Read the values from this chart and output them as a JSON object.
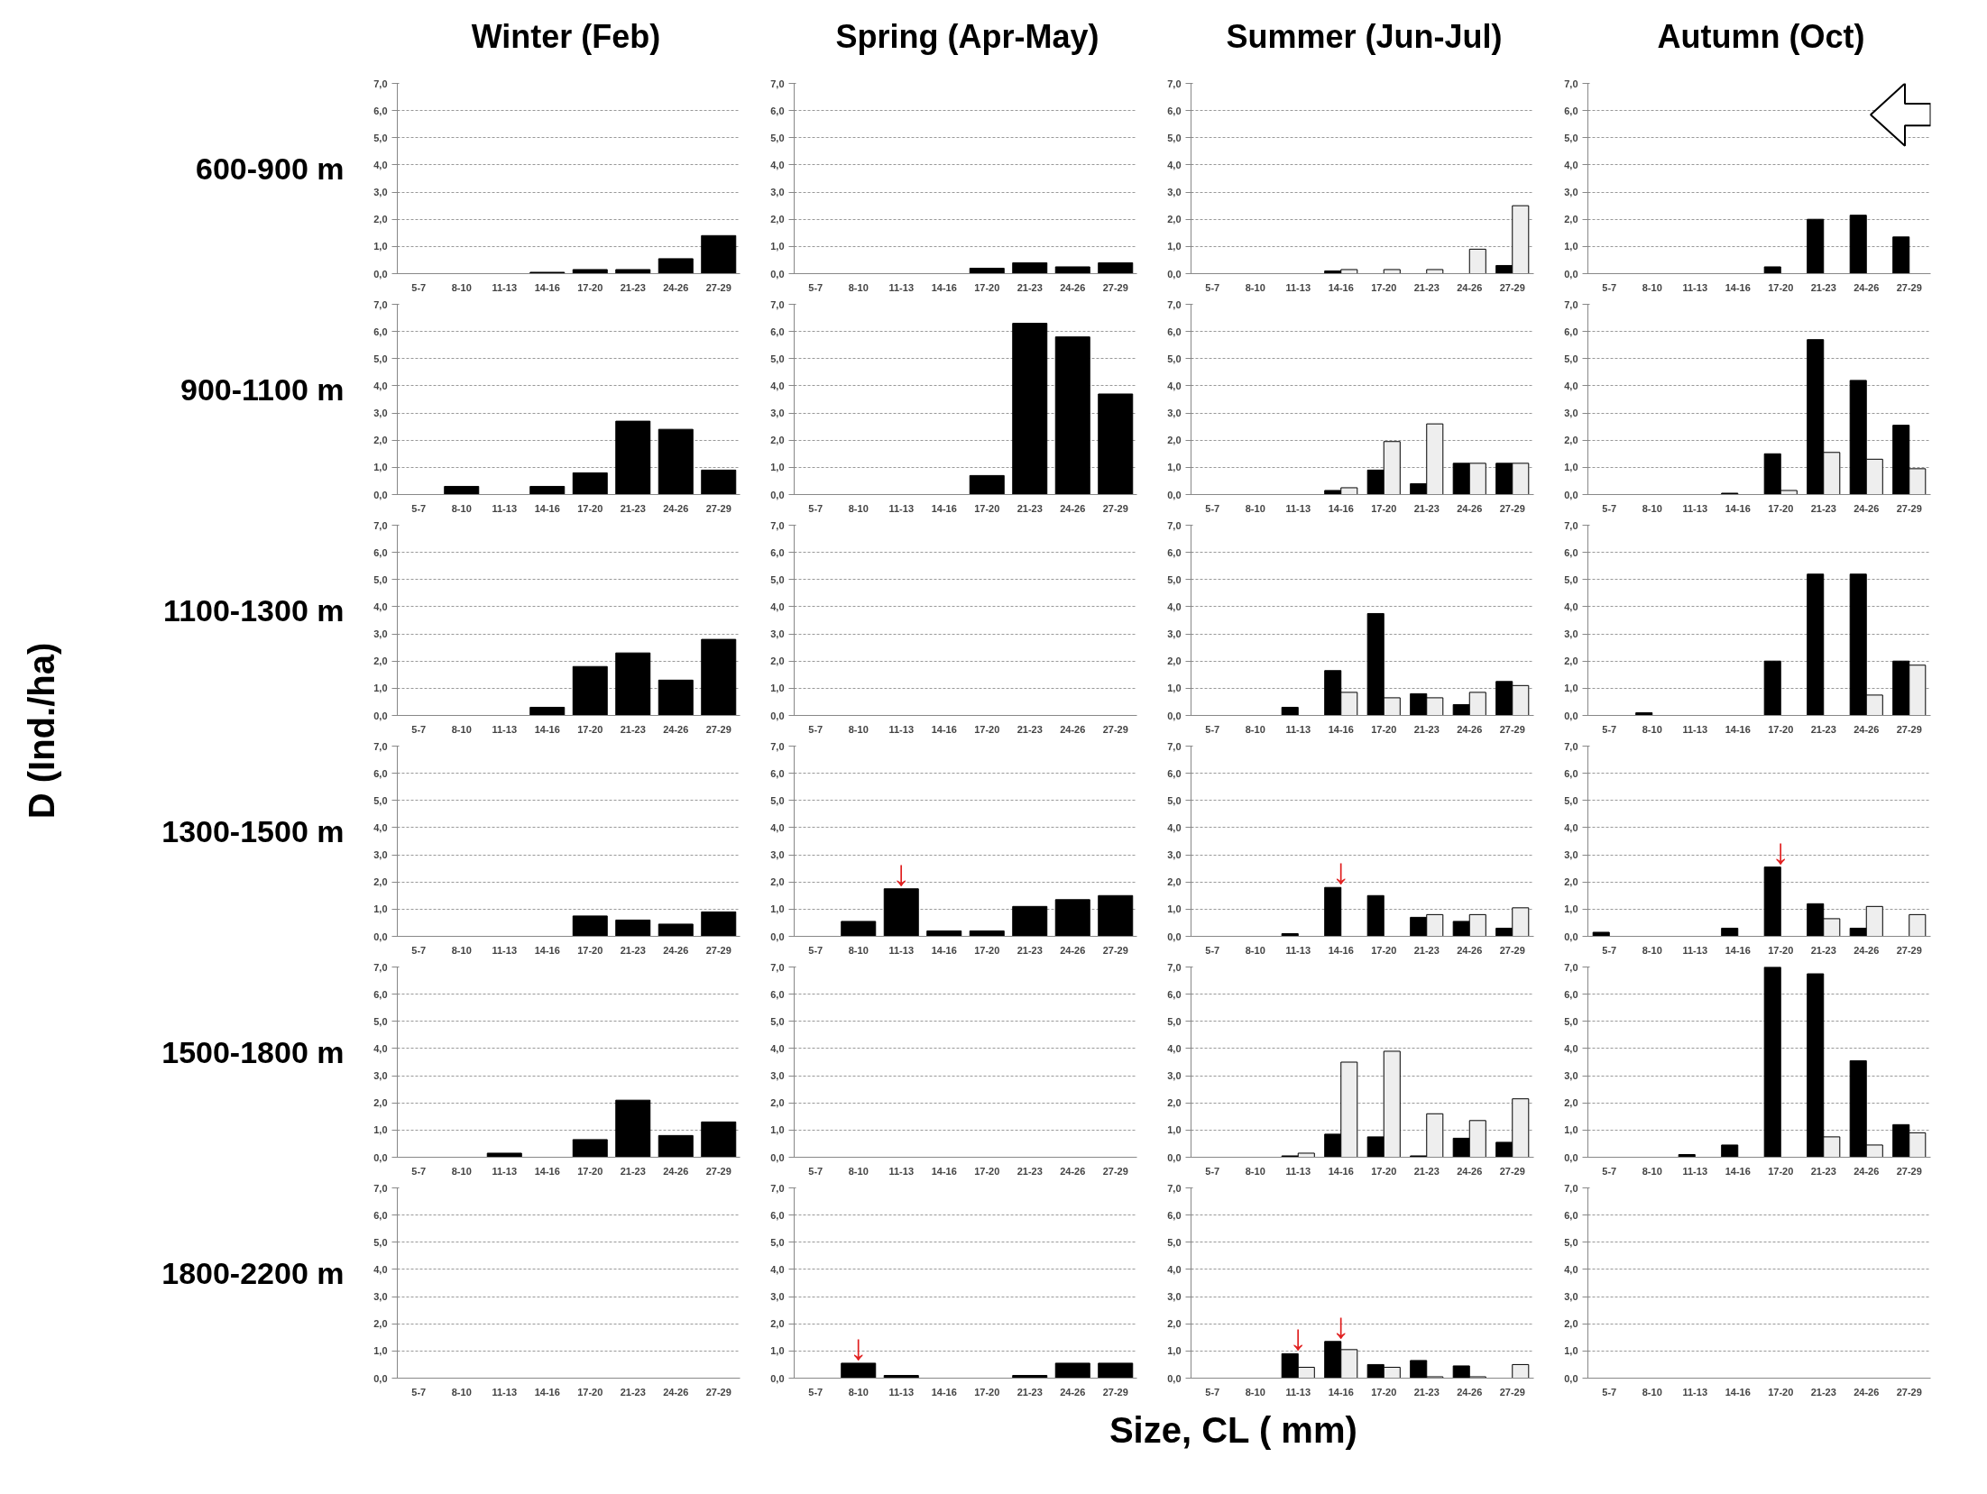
{
  "chart_data": [
    {
      "type": "bar",
      "title": "Winter  (Feb)",
      "ylabel": "600-900 m",
      "annotations": [
        "D (Ind./ha)",
        "Size, CL ( mm)"
      ],
      "categories": [
        "5-7",
        "8-10",
        "11-13",
        "14-16",
        "17-20",
        "21-23",
        "24-26",
        "27-29"
      ],
      "series": [
        {
          "color": "#000000",
          "values": [
            0,
            0,
            0,
            0.05,
            0.15,
            0.15,
            0.55,
            1.4
          ]
        }
      ],
      "ylim": [
        0,
        7
      ],
      "yticks": [
        {
          "value": 0,
          "label": "0,0"
        },
        {
          "value": 1,
          "label": "1,0"
        },
        {
          "value": 2,
          "label": "2,0"
        },
        {
          "value": 3,
          "label": "3,0"
        },
        {
          "value": 4,
          "label": "4,0"
        },
        {
          "value": 5,
          "label": "5,0"
        },
        {
          "value": 6,
          "label": "6,0"
        },
        {
          "value": 7,
          "label": "7,0"
        }
      ],
      "grid": "y"
    },
    {
      "type": "bar",
      "title": "Spring (Apr-May)",
      "categories": [
        "5-7",
        "8-10",
        "11-13",
        "14-16",
        "17-20",
        "21-23",
        "24-26",
        "27-29"
      ],
      "series": [
        {
          "color": "#000000",
          "values": [
            0,
            0,
            0,
            0,
            0.2,
            0.4,
            0.25,
            0.4
          ]
        }
      ],
      "ylim": [
        0,
        7
      ],
      "yticks": [
        {
          "value": 0,
          "label": "0,0"
        },
        {
          "value": 1,
          "label": "1,0"
        },
        {
          "value": 2,
          "label": "2,0"
        },
        {
          "value": 3,
          "label": "3,0"
        },
        {
          "value": 4,
          "label": "4,0"
        },
        {
          "value": 5,
          "label": "5,0"
        },
        {
          "value": 6,
          "label": "6,0"
        },
        {
          "value": 7,
          "label": "7,0"
        }
      ],
      "grid": "y"
    },
    {
      "type": "bar",
      "title": "Summer (Jun-Jul)",
      "categories": [
        "5-7",
        "8-10",
        "11-13",
        "14-16",
        "17-20",
        "21-23",
        "24-26",
        "27-29"
      ],
      "series": [
        {
          "color": "#000000",
          "values": [
            0,
            0,
            0,
            0.1,
            0,
            0,
            0,
            0.3
          ]
        },
        {
          "color": "#eeeeee",
          "values": [
            0,
            0,
            0,
            0.15,
            0.15,
            0.15,
            0.9,
            2.5
          ]
        }
      ],
      "ylim": [
        0,
        7
      ],
      "yticks": [
        {
          "value": 0,
          "label": "0,0"
        },
        {
          "value": 1,
          "label": "1,0"
        },
        {
          "value": 2,
          "label": "2,0"
        },
        {
          "value": 3,
          "label": "3,0"
        },
        {
          "value": 4,
          "label": "4,0"
        },
        {
          "value": 5,
          "label": "5,0"
        },
        {
          "value": 6,
          "label": "6,0"
        },
        {
          "value": 7,
          "label": "7,0"
        }
      ],
      "grid": "y"
    },
    {
      "type": "bar",
      "title": "Autumn (Oct)",
      "categories": [
        "5-7",
        "8-10",
        "11-13",
        "14-16",
        "17-20",
        "21-23",
        "24-26",
        "27-29"
      ],
      "series": [
        {
          "color": "#000000",
          "values": [
            0,
            0,
            0,
            0,
            0.25,
            2.0,
            2.15,
            1.35
          ]
        },
        {
          "color": "#eeeeee",
          "values": [
            0,
            0,
            0,
            0,
            0,
            0,
            0,
            0
          ]
        }
      ],
      "ylim": [
        0,
        7
      ],
      "yticks": [
        {
          "value": 0,
          "label": "0,0"
        },
        {
          "value": 1,
          "label": "1,0"
        },
        {
          "value": 2,
          "label": "2,0"
        },
        {
          "value": 3,
          "label": "3,0"
        },
        {
          "value": 4,
          "label": "4,0"
        },
        {
          "value": 5,
          "label": "5,0"
        },
        {
          "value": 6,
          "label": "6,0"
        },
        {
          "value": 7,
          "label": "7,0"
        }
      ],
      "grid": "y"
    },
    {
      "type": "bar",
      "ylabel": "900-1100 m",
      "categories": [
        "5-7",
        "8-10",
        "11-13",
        "14-16",
        "17-20",
        "21-23",
        "24-26",
        "27-29"
      ],
      "series": [
        {
          "color": "#000000",
          "values": [
            0,
            0.3,
            0,
            0.3,
            0.8,
            2.7,
            2.4,
            0.9
          ]
        }
      ],
      "ylim": [
        0,
        7
      ],
      "yticks": [
        {
          "value": 0,
          "label": "0,0"
        },
        {
          "value": 1,
          "label": "1,0"
        },
        {
          "value": 2,
          "label": "2,0"
        },
        {
          "value": 3,
          "label": "3,0"
        },
        {
          "value": 4,
          "label": "4,0"
        },
        {
          "value": 5,
          "label": "5,0"
        },
        {
          "value": 6,
          "label": "6,0"
        },
        {
          "value": 7,
          "label": "7,0"
        }
      ],
      "grid": "y"
    },
    {
      "type": "bar",
      "categories": [
        "5-7",
        "8-10",
        "11-13",
        "14-16",
        "17-20",
        "21-23",
        "24-26",
        "27-29"
      ],
      "series": [
        {
          "color": "#000000",
          "values": [
            0,
            0,
            0,
            0,
            0.7,
            6.3,
            5.8,
            3.7
          ]
        }
      ],
      "ylim": [
        0,
        7
      ],
      "yticks": [
        {
          "value": 0,
          "label": "0,0"
        },
        {
          "value": 1,
          "label": "1,0"
        },
        {
          "value": 2,
          "label": "2,0"
        },
        {
          "value": 3,
          "label": "3,0"
        },
        {
          "value": 4,
          "label": "4,0"
        },
        {
          "value": 5,
          "label": "5,0"
        },
        {
          "value": 6,
          "label": "6,0"
        },
        {
          "value": 7,
          "label": "7,0"
        }
      ],
      "grid": "y"
    },
    {
      "type": "bar",
      "categories": [
        "5-7",
        "8-10",
        "11-13",
        "14-16",
        "17-20",
        "21-23",
        "24-26",
        "27-29"
      ],
      "series": [
        {
          "color": "#000000",
          "values": [
            0,
            0,
            0,
            0.15,
            0.9,
            0.4,
            1.15,
            1.15
          ]
        },
        {
          "color": "#eeeeee",
          "values": [
            0,
            0,
            0,
            0.25,
            1.95,
            2.6,
            1.15,
            1.15
          ]
        }
      ],
      "ylim": [
        0,
        7
      ],
      "yticks": [
        {
          "value": 0,
          "label": "0,0"
        },
        {
          "value": 1,
          "label": "1,0"
        },
        {
          "value": 2,
          "label": "2,0"
        },
        {
          "value": 3,
          "label": "3,0"
        },
        {
          "value": 4,
          "label": "4,0"
        },
        {
          "value": 5,
          "label": "5,0"
        },
        {
          "value": 6,
          "label": "6,0"
        },
        {
          "value": 7,
          "label": "7,0"
        }
      ],
      "grid": "y"
    },
    {
      "type": "bar",
      "categories": [
        "5-7",
        "8-10",
        "11-13",
        "14-16",
        "17-20",
        "21-23",
        "24-26",
        "27-29"
      ],
      "series": [
        {
          "color": "#000000",
          "values": [
            0,
            0,
            0,
            0.05,
            1.5,
            5.7,
            4.2,
            2.55
          ]
        },
        {
          "color": "#eeeeee",
          "values": [
            0,
            0,
            0,
            0,
            0.15,
            1.55,
            1.3,
            0.95
          ]
        }
      ],
      "ylim": [
        0,
        7
      ],
      "yticks": [
        {
          "value": 0,
          "label": "0,0"
        },
        {
          "value": 1,
          "label": "1,0"
        },
        {
          "value": 2,
          "label": "2,0"
        },
        {
          "value": 3,
          "label": "3,0"
        },
        {
          "value": 4,
          "label": "4,0"
        },
        {
          "value": 5,
          "label": "5,0"
        },
        {
          "value": 6,
          "label": "6,0"
        },
        {
          "value": 7,
          "label": "7,0"
        }
      ],
      "grid": "y"
    },
    {
      "type": "bar",
      "ylabel": "1100-1300 m",
      "categories": [
        "5-7",
        "8-10",
        "11-13",
        "14-16",
        "17-20",
        "21-23",
        "24-26",
        "27-29"
      ],
      "series": [
        {
          "color": "#000000",
          "values": [
            0,
            0,
            0,
            0.3,
            1.8,
            2.3,
            1.3,
            2.8
          ]
        }
      ],
      "ylim": [
        0,
        7
      ],
      "yticks": [
        {
          "value": 0,
          "label": "0,0"
        },
        {
          "value": 1,
          "label": "1,0"
        },
        {
          "value": 2,
          "label": "2,0"
        },
        {
          "value": 3,
          "label": "3,0"
        },
        {
          "value": 4,
          "label": "4,0"
        },
        {
          "value": 5,
          "label": "5,0"
        },
        {
          "value": 6,
          "label": "6,0"
        },
        {
          "value": 7,
          "label": "7,0"
        }
      ],
      "grid": "y"
    },
    {
      "type": "bar",
      "categories": [
        "5-7",
        "8-10",
        "11-13",
        "14-16",
        "17-20",
        "21-23",
        "24-26",
        "27-29"
      ],
      "series": [
        {
          "color": "#000000",
          "values": [
            0,
            0,
            0,
            0,
            0,
            0,
            0,
            0
          ]
        }
      ],
      "ylim": [
        0,
        7
      ],
      "yticks": [
        {
          "value": 0,
          "label": "0,0"
        },
        {
          "value": 1,
          "label": "1,0"
        },
        {
          "value": 2,
          "label": "2,0"
        },
        {
          "value": 3,
          "label": "3,0"
        },
        {
          "value": 4,
          "label": "4,0"
        },
        {
          "value": 5,
          "label": "5,0"
        },
        {
          "value": 6,
          "label": "6,0"
        },
        {
          "value": 7,
          "label": "7,0"
        }
      ],
      "grid": "y"
    },
    {
      "type": "bar",
      "categories": [
        "5-7",
        "8-10",
        "11-13",
        "14-16",
        "17-20",
        "21-23",
        "24-26",
        "27-29"
      ],
      "series": [
        {
          "color": "#000000",
          "values": [
            0,
            0,
            0.3,
            1.65,
            3.75,
            0.8,
            0.4,
            1.25
          ]
        },
        {
          "color": "#eeeeee",
          "values": [
            0,
            0,
            0,
            0.85,
            0.65,
            0.65,
            0.85,
            1.1
          ]
        }
      ],
      "ylim": [
        0,
        7
      ],
      "yticks": [
        {
          "value": 0,
          "label": "0,0"
        },
        {
          "value": 1,
          "label": "1,0"
        },
        {
          "value": 2,
          "label": "2,0"
        },
        {
          "value": 3,
          "label": "3,0"
        },
        {
          "value": 4,
          "label": "4,0"
        },
        {
          "value": 5,
          "label": "5,0"
        },
        {
          "value": 6,
          "label": "6,0"
        },
        {
          "value": 7,
          "label": "7,0"
        }
      ],
      "grid": "y"
    },
    {
      "type": "bar",
      "categories": [
        "5-7",
        "8-10",
        "11-13",
        "14-16",
        "17-20",
        "21-23",
        "24-26",
        "27-29"
      ],
      "series": [
        {
          "color": "#000000",
          "values": [
            0,
            0.1,
            0,
            0,
            2.0,
            5.2,
            5.2,
            2.0
          ]
        },
        {
          "color": "#eeeeee",
          "values": [
            0,
            0,
            0,
            0,
            0,
            0,
            0.75,
            1.85
          ]
        }
      ],
      "ylim": [
        0,
        7
      ],
      "yticks": [
        {
          "value": 0,
          "label": "0,0"
        },
        {
          "value": 1,
          "label": "1,0"
        },
        {
          "value": 2,
          "label": "2,0"
        },
        {
          "value": 3,
          "label": "3,0"
        },
        {
          "value": 4,
          "label": "4,0"
        },
        {
          "value": 5,
          "label": "5,0"
        },
        {
          "value": 6,
          "label": "6,0"
        },
        {
          "value": 7,
          "label": "7,0"
        }
      ],
      "grid": "y"
    },
    {
      "type": "bar",
      "ylabel": "1300-1500 m",
      "categories": [
        "5-7",
        "8-10",
        "11-13",
        "14-16",
        "17-20",
        "21-23",
        "24-26",
        "27-29"
      ],
      "series": [
        {
          "color": "#000000",
          "values": [
            0,
            0,
            0,
            0,
            0.75,
            0.6,
            0.45,
            0.9
          ]
        }
      ],
      "ylim": [
        0,
        7
      ],
      "yticks": [
        {
          "value": 0,
          "label": "0,0"
        },
        {
          "value": 1,
          "label": "1,0"
        },
        {
          "value": 2,
          "label": "2,0"
        },
        {
          "value": 3,
          "label": "3,0"
        },
        {
          "value": 4,
          "label": "4,0"
        },
        {
          "value": 5,
          "label": "5,0"
        },
        {
          "value": 6,
          "label": "6,0"
        },
        {
          "value": 7,
          "label": "7,0"
        }
      ],
      "grid": "y"
    },
    {
      "type": "bar",
      "annotations": [
        {
          "text": "↓",
          "x": "11-13",
          "y": 1.75
        }
      ],
      "categories": [
        "5-7",
        "8-10",
        "11-13",
        "14-16",
        "17-20",
        "21-23",
        "24-26",
        "27-29"
      ],
      "series": [
        {
          "color": "#000000",
          "values": [
            0,
            0.55,
            1.75,
            0.2,
            0.2,
            1.1,
            1.35,
            1.5
          ]
        }
      ],
      "ylim": [
        0,
        7
      ],
      "yticks": [
        {
          "value": 0,
          "label": "0,0"
        },
        {
          "value": 1,
          "label": "1,0"
        },
        {
          "value": 2,
          "label": "2,0"
        },
        {
          "value": 3,
          "label": "3,0"
        },
        {
          "value": 4,
          "label": "4,0"
        },
        {
          "value": 5,
          "label": "5,0"
        },
        {
          "value": 6,
          "label": "6,0"
        },
        {
          "value": 7,
          "label": "7,0"
        }
      ],
      "grid": "y"
    },
    {
      "type": "bar",
      "annotations": [
        {
          "text": "↓",
          "x": "14-16",
          "y": 1.8
        }
      ],
      "categories": [
        "5-7",
        "8-10",
        "11-13",
        "14-16",
        "17-20",
        "21-23",
        "24-26",
        "27-29"
      ],
      "series": [
        {
          "color": "#000000",
          "values": [
            0,
            0,
            0.1,
            1.8,
            1.5,
            0.7,
            0.55,
            0.3
          ]
        },
        {
          "color": "#eeeeee",
          "values": [
            0,
            0,
            0,
            0,
            0,
            0.8,
            0.8,
            1.05
          ]
        }
      ],
      "ylim": [
        0,
        7
      ],
      "yticks": [
        {
          "value": 0,
          "label": "0,0"
        },
        {
          "value": 1,
          "label": "1,0"
        },
        {
          "value": 2,
          "label": "2,0"
        },
        {
          "value": 3,
          "label": "3,0"
        },
        {
          "value": 4,
          "label": "4,0"
        },
        {
          "value": 5,
          "label": "5,0"
        },
        {
          "value": 6,
          "label": "6,0"
        },
        {
          "value": 7,
          "label": "7,0"
        }
      ],
      "grid": "y"
    },
    {
      "type": "bar",
      "annotations": [
        {
          "text": "↓",
          "x": "17-20",
          "y": 2.55
        }
      ],
      "categories": [
        "5-7",
        "8-10",
        "11-13",
        "14-16",
        "17-20",
        "21-23",
        "24-26",
        "27-29"
      ],
      "series": [
        {
          "color": "#000000",
          "values": [
            0.15,
            0,
            0,
            0.3,
            2.55,
            1.2,
            0.3,
            0
          ]
        },
        {
          "color": "#eeeeee",
          "values": [
            0,
            0,
            0,
            0,
            0,
            0.65,
            1.1,
            0.8
          ]
        }
      ],
      "ylim": [
        0,
        7
      ],
      "yticks": [
        {
          "value": 0,
          "label": "0,0"
        },
        {
          "value": 1,
          "label": "1,0"
        },
        {
          "value": 2,
          "label": "2,0"
        },
        {
          "value": 3,
          "label": "3,0"
        },
        {
          "value": 4,
          "label": "4,0"
        },
        {
          "value": 5,
          "label": "5,0"
        },
        {
          "value": 6,
          "label": "6,0"
        },
        {
          "value": 7,
          "label": "7,0"
        }
      ],
      "grid": "y"
    },
    {
      "type": "bar",
      "ylabel": "1500-1800 m",
      "categories": [
        "5-7",
        "8-10",
        "11-13",
        "14-16",
        "17-20",
        "21-23",
        "24-26",
        "27-29"
      ],
      "series": [
        {
          "color": "#000000",
          "values": [
            0,
            0,
            0.15,
            0,
            0.65,
            2.1,
            0.8,
            1.3
          ]
        }
      ],
      "ylim": [
        0,
        7
      ],
      "yticks": [
        {
          "value": 0,
          "label": "0,0"
        },
        {
          "value": 1,
          "label": "1,0"
        },
        {
          "value": 2,
          "label": "2,0"
        },
        {
          "value": 3,
          "label": "3,0"
        },
        {
          "value": 4,
          "label": "4,0"
        },
        {
          "value": 5,
          "label": "5,0"
        },
        {
          "value": 6,
          "label": "6,0"
        },
        {
          "value": 7,
          "label": "7,0"
        }
      ],
      "grid": "y"
    },
    {
      "type": "bar",
      "categories": [
        "5-7",
        "8-10",
        "11-13",
        "14-16",
        "17-20",
        "21-23",
        "24-26",
        "27-29"
      ],
      "series": [
        {
          "color": "#000000",
          "values": [
            0,
            0,
            0,
            0,
            0,
            0,
            0,
            0
          ]
        }
      ],
      "ylim": [
        0,
        7
      ],
      "yticks": [
        {
          "value": 0,
          "label": "0,0"
        },
        {
          "value": 1,
          "label": "1,0"
        },
        {
          "value": 2,
          "label": "2,0"
        },
        {
          "value": 3,
          "label": "3,0"
        },
        {
          "value": 4,
          "label": "4,0"
        },
        {
          "value": 5,
          "label": "5,0"
        },
        {
          "value": 6,
          "label": "6,0"
        },
        {
          "value": 7,
          "label": "7,0"
        }
      ],
      "grid": "y"
    },
    {
      "type": "bar",
      "categories": [
        "5-7",
        "8-10",
        "11-13",
        "14-16",
        "17-20",
        "21-23",
        "24-26",
        "27-29"
      ],
      "series": [
        {
          "color": "#000000",
          "values": [
            0,
            0,
            0.05,
            0.85,
            0.75,
            0.05,
            0.7,
            0.55
          ]
        },
        {
          "color": "#eeeeee",
          "values": [
            0,
            0,
            0.15,
            3.5,
            3.9,
            1.6,
            1.35,
            2.15
          ]
        }
      ],
      "ylim": [
        0,
        7
      ],
      "yticks": [
        {
          "value": 0,
          "label": "0,0"
        },
        {
          "value": 1,
          "label": "1,0"
        },
        {
          "value": 2,
          "label": "2,0"
        },
        {
          "value": 3,
          "label": "3,0"
        },
        {
          "value": 4,
          "label": "4,0"
        },
        {
          "value": 5,
          "label": "5,0"
        },
        {
          "value": 6,
          "label": "6,0"
        },
        {
          "value": 7,
          "label": "7,0"
        }
      ],
      "grid": "y"
    },
    {
      "type": "bar",
      "categories": [
        "5-7",
        "8-10",
        "11-13",
        "14-16",
        "17-20",
        "21-23",
        "24-26",
        "27-29"
      ],
      "series": [
        {
          "color": "#000000",
          "values": [
            0,
            0,
            0.1,
            0.45,
            7.0,
            6.75,
            3.55,
            1.2
          ]
        },
        {
          "color": "#eeeeee",
          "values": [
            0,
            0,
            0,
            0,
            0,
            0.75,
            0.45,
            0.9
          ]
        }
      ],
      "ylim": [
        0,
        7
      ],
      "yticks": [
        {
          "value": 0,
          "label": "0,0"
        },
        {
          "value": 1,
          "label": "1,0"
        },
        {
          "value": 2,
          "label": "2,0"
        },
        {
          "value": 3,
          "label": "3,0"
        },
        {
          "value": 4,
          "label": "4,0"
        },
        {
          "value": 5,
          "label": "5,0"
        },
        {
          "value": 6,
          "label": "6,0"
        },
        {
          "value": 7,
          "label": "7,0"
        }
      ],
      "grid": "y"
    },
    {
      "type": "bar",
      "ylabel": "1800-2200 m",
      "categories": [
        "5-7",
        "8-10",
        "11-13",
        "14-16",
        "17-20",
        "21-23",
        "24-26",
        "27-29"
      ],
      "series": [
        {
          "color": "#000000",
          "values": [
            0,
            0,
            0,
            0,
            0,
            0,
            0,
            0
          ]
        }
      ],
      "ylim": [
        0,
        7
      ],
      "yticks": [
        {
          "value": 0,
          "label": "0,0"
        },
        {
          "value": 1,
          "label": "1,0"
        },
        {
          "value": 2,
          "label": "2,0"
        },
        {
          "value": 3,
          "label": "3,0"
        },
        {
          "value": 4,
          "label": "4,0"
        },
        {
          "value": 5,
          "label": "5,0"
        },
        {
          "value": 6,
          "label": "6,0"
        },
        {
          "value": 7,
          "label": "7,0"
        }
      ],
      "grid": "y"
    },
    {
      "type": "bar",
      "annotations": [
        {
          "text": "↓",
          "x": "8-10",
          "y": 0.55
        }
      ],
      "categories": [
        "5-7",
        "8-10",
        "11-13",
        "14-16",
        "17-20",
        "21-23",
        "24-26",
        "27-29"
      ],
      "series": [
        {
          "color": "#000000",
          "values": [
            0,
            0.55,
            0.1,
            0,
            0,
            0.1,
            0.55,
            0.55
          ]
        }
      ],
      "ylim": [
        0,
        7
      ],
      "yticks": [
        {
          "value": 0,
          "label": "0,0"
        },
        {
          "value": 1,
          "label": "1,0"
        },
        {
          "value": 2,
          "label": "2,0"
        },
        {
          "value": 3,
          "label": "3,0"
        },
        {
          "value": 4,
          "label": "4,0"
        },
        {
          "value": 5,
          "label": "5,0"
        },
        {
          "value": 6,
          "label": "6,0"
        },
        {
          "value": 7,
          "label": "7,0"
        }
      ],
      "grid": "y"
    },
    {
      "type": "bar",
      "annotations": [
        {
          "text": "↓",
          "x": "11-13",
          "y": 0.9
        },
        {
          "text": "↓",
          "x": "14-16",
          "y": 1.35
        }
      ],
      "categories": [
        "5-7",
        "8-10",
        "11-13",
        "14-16",
        "17-20",
        "21-23",
        "24-26",
        "27-29"
      ],
      "series": [
        {
          "color": "#000000",
          "values": [
            0,
            0,
            0.9,
            1.35,
            0.5,
            0.65,
            0.45,
            0
          ]
        },
        {
          "color": "#eeeeee",
          "values": [
            0,
            0,
            0.4,
            1.05,
            0.4,
            0.05,
            0.05,
            0.5
          ]
        }
      ],
      "ylim": [
        0,
        7
      ],
      "yticks": [
        {
          "value": 0,
          "label": "0,0"
        },
        {
          "value": 1,
          "label": "1,0"
        },
        {
          "value": 2,
          "label": "2,0"
        },
        {
          "value": 3,
          "label": "3,0"
        },
        {
          "value": 4,
          "label": "4,0"
        },
        {
          "value": 5,
          "label": "5,0"
        },
        {
          "value": 6,
          "label": "6,0"
        },
        {
          "value": 7,
          "label": "7,0"
        }
      ],
      "grid": "y"
    },
    {
      "type": "bar",
      "categories": [
        "5-7",
        "8-10",
        "11-13",
        "14-16",
        "17-20",
        "21-23",
        "24-26",
        "27-29"
      ],
      "series": [
        {
          "color": "#000000",
          "values": [
            0,
            0,
            0,
            0,
            0,
            0,
            0,
            0
          ]
        },
        {
          "color": "#eeeeee",
          "values": [
            0,
            0,
            0,
            0,
            0,
            0,
            0,
            0
          ]
        }
      ],
      "ylim": [
        0,
        7
      ],
      "yticks": [
        {
          "value": 0,
          "label": "0,0"
        },
        {
          "value": 1,
          "label": "1,0"
        },
        {
          "value": 2,
          "label": "2,0"
        },
        {
          "value": 3,
          "label": "3,0"
        },
        {
          "value": 4,
          "label": "4,0"
        },
        {
          "value": 5,
          "label": "5,0"
        },
        {
          "value": 6,
          "label": "6,0"
        },
        {
          "value": 7,
          "label": "7,0"
        }
      ],
      "grid": "y"
    }
  ]
}
